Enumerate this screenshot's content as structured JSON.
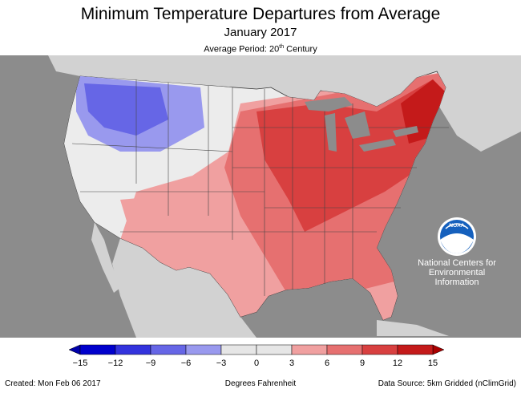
{
  "header": {
    "title": "Minimum Temperature Departures from Average",
    "subtitle": "January 2017",
    "period_prefix": "Average Period: 20",
    "period_sup": "th",
    "period_suffix": " Century"
  },
  "map": {
    "ocean_color": "#8c8c8c",
    "land_outside_color": "#d2d2d2",
    "great_lakes_color": "#8c8c8c"
  },
  "logo": {
    "badge_text": "NOAA",
    "org_line1": "National Centers for",
    "org_line2": "Environmental",
    "org_line3": "Information"
  },
  "legend": {
    "unit_label": "Degrees Fahrenheit",
    "ticks": [
      "−15",
      "−12",
      "−9",
      "−6",
      "−3",
      "0",
      "3",
      "6",
      "9",
      "12",
      "15"
    ],
    "colors": [
      "#0000cc",
      "#3333dd",
      "#6666e6",
      "#9999ee",
      "#e6e6e6",
      "#e6e6e6",
      "#f0a0a0",
      "#e67070",
      "#d84040",
      "#c41a1a"
    ],
    "low_arrow_color": "#0000aa",
    "high_arrow_color": "#aa0000"
  },
  "footer": {
    "created": "Created: Mon Feb 06 2017",
    "source": "Data Source: 5km Gridded (nClimGrid)"
  }
}
